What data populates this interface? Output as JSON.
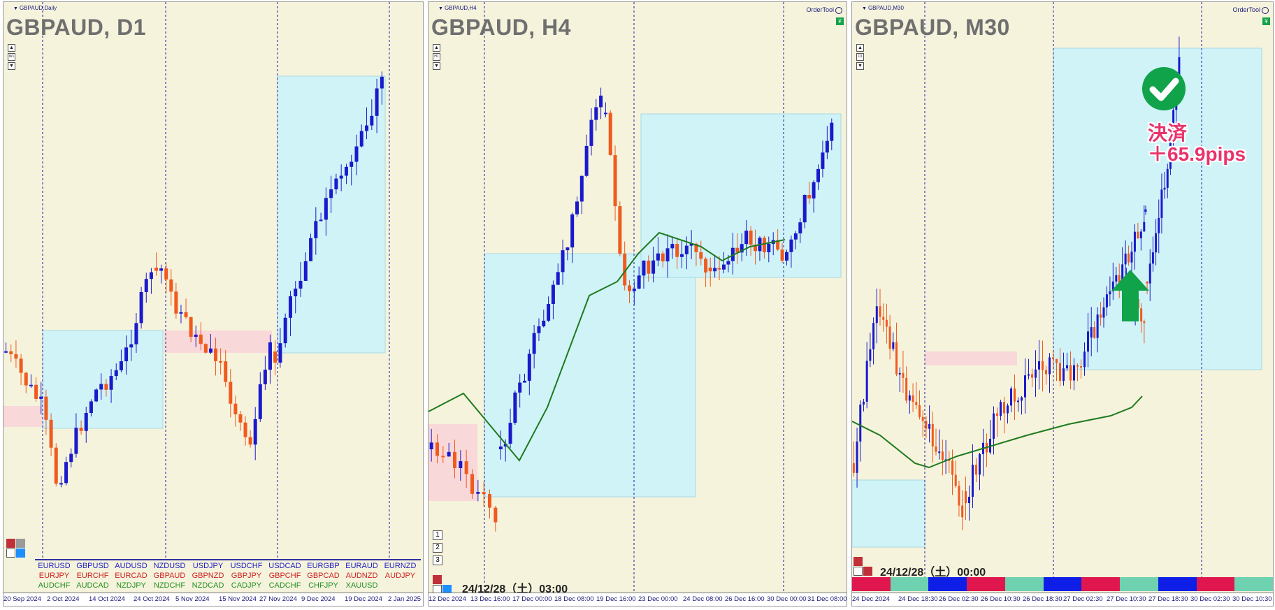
{
  "colors": {
    "bull": "#1a1acc",
    "bear": "#f05a1e",
    "ma": "#1e7a1e",
    "zone_blue": "#cdf4fa",
    "zone_pink": "#f8d5d8",
    "bg": "#f5f3dc",
    "note": "#e8336c",
    "check": "#11a34a"
  },
  "panels": [
    {
      "id": "d1",
      "small_label": "GBPAUD,Daily",
      "title": "GBPAUD, D1",
      "order_tool": "",
      "x_ticks": [
        "20 Sep 2024",
        "2 Oct 2024",
        "14 Oct 2024",
        "24 Oct 2024",
        "5 Nov 2024",
        "15 Nov 2024",
        "27 Nov 2024",
        "9 Dec 2024",
        "19 Dec 2024",
        "2 Jan 2025"
      ]
    },
    {
      "id": "h4",
      "small_label": "GBPAUD,H4",
      "title": "GBPAUD, H4",
      "order_tool": "OrderTool",
      "x_ticks": [
        "12 Dec 2024",
        "13 Dec 16:00",
        "17 Dec 00:00",
        "18 Dec 08:00",
        "19 Dec 16:00",
        "23 Dec 00:00",
        "24 Dec 08:00",
        "26 Dec 16:00",
        "30 Dec 00:00",
        "31 Dec 08:00"
      ],
      "timestamp": "24/12/28（土）03:00"
    },
    {
      "id": "m30",
      "small_label": "GBPAUD,M30",
      "title": "GBPAUD, M30",
      "order_tool": "OrderTool",
      "x_ticks": [
        "24 Dec 2024",
        "24 Dec 18:30",
        "26 Dec 02:30",
        "26 Dec 10:30",
        "26 Dec 18:30",
        "27 Dec 02:30",
        "27 Dec 10:30",
        "27 Dec 18:30",
        "30 Dec 02:30",
        "30 Dec 10:30"
      ],
      "timestamp": "24/12/28（土）00:00"
    }
  ],
  "currency_pairs": {
    "row_blue": [
      "EURUSD",
      "GBPUSD",
      "AUDUSD",
      "NZDUSD",
      "USDJPY",
      "USDCHF",
      "USDCAD",
      "EURGBP",
      "EURAUD",
      "EURNZD"
    ],
    "row_red": [
      "EURJPY",
      "EURCHF",
      "EURCAD",
      "GBPAUD",
      "GBPNZD",
      "GBPJPY",
      "GBPCHF",
      "GBPCAD",
      "AUDNZD",
      "AUDJPY"
    ],
    "row_green": [
      "AUDCHF",
      "AUDCAD",
      "NZDJPY",
      "NZDCHF",
      "NZDCAD",
      "CADJPY",
      "CADCHF",
      "CHFJPY",
      "XAUUSD"
    ]
  },
  "period_buttons": [
    "1",
    "2",
    "3"
  ],
  "annotation": {
    "line1": "決済",
    "line2": "＋65.9pips"
  },
  "session_colors": [
    "#e0174f",
    "#6ed2b1",
    "#0f1ee6",
    "#e0174f",
    "#6ed2b1",
    "#0f1ee6",
    "#e0174f",
    "#6ed2b1",
    "#0f1ee6",
    "#e0174f",
    "#6ed2b1"
  ]
}
